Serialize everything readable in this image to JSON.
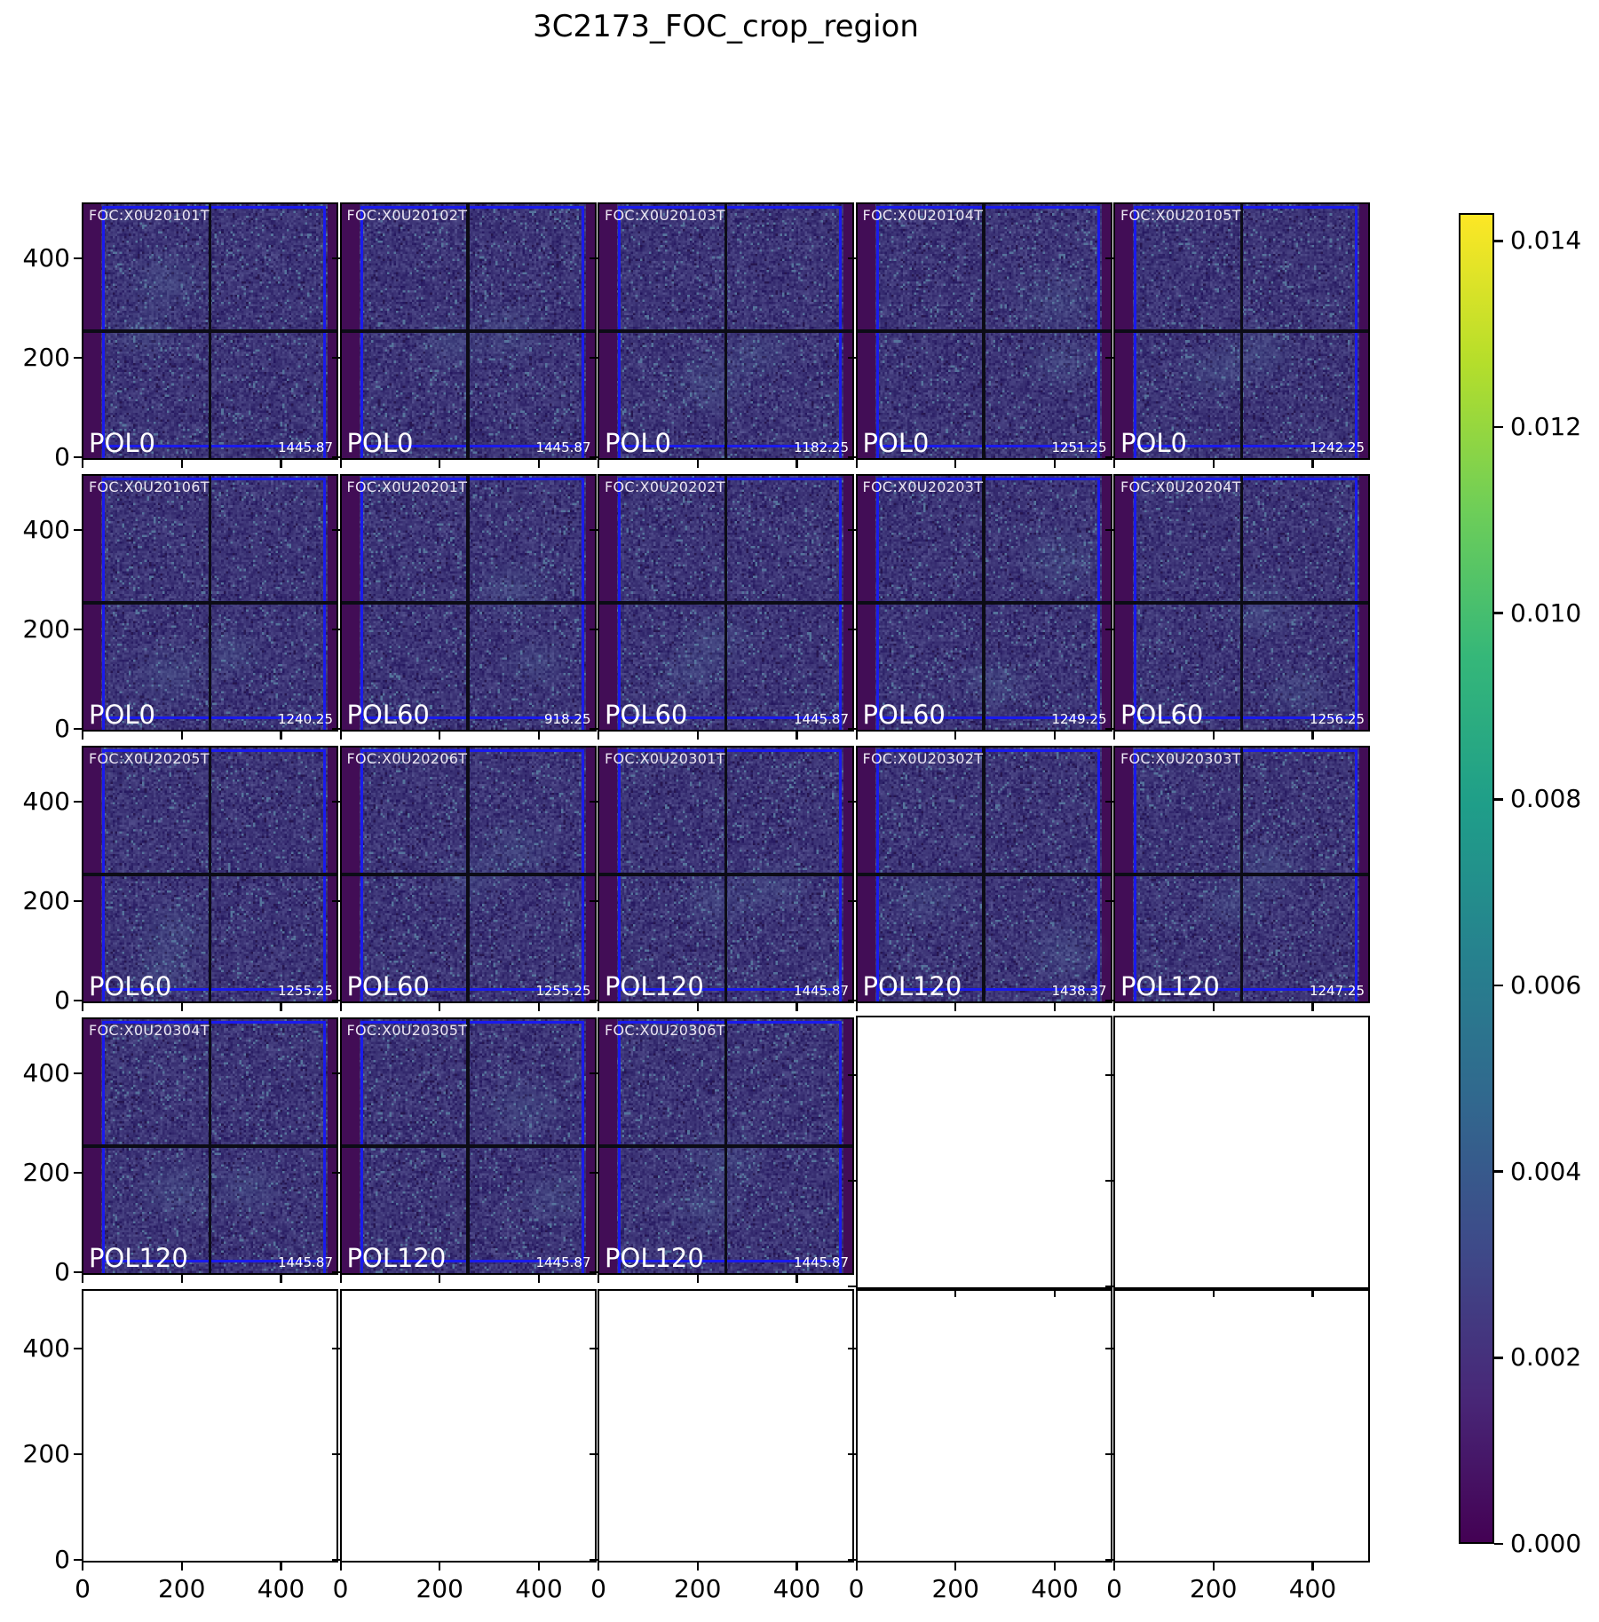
{
  "chart_data": {
    "type": "heatmap",
    "title": "3C2173_FOC_crop_region",
    "colormap": "viridis",
    "grid_rows": 5,
    "grid_cols": 5,
    "axis_data_range": [
      0,
      512
    ],
    "x_tick_labels": [
      "0",
      "200",
      "400"
    ],
    "y_tick_labels": [
      "400",
      "200",
      "0"
    ],
    "tick_values": [
      0,
      200,
      400
    ],
    "panels": [
      {
        "row": 0,
        "col": 0,
        "foc_id": "FOC:X0U20101T",
        "pol": "POL0",
        "value": "1445.87"
      },
      {
        "row": 0,
        "col": 1,
        "foc_id": "FOC:X0U20102T",
        "pol": "POL0",
        "value": "1445.87"
      },
      {
        "row": 0,
        "col": 2,
        "foc_id": "FOC:X0U20103T",
        "pol": "POL0",
        "value": "1182.25"
      },
      {
        "row": 0,
        "col": 3,
        "foc_id": "FOC:X0U20104T",
        "pol": "POL0",
        "value": "1251.25"
      },
      {
        "row": 0,
        "col": 4,
        "foc_id": "FOC:X0U20105T",
        "pol": "POL0",
        "value": "1242.25"
      },
      {
        "row": 1,
        "col": 0,
        "foc_id": "FOC:X0U20106T",
        "pol": "POL0",
        "value": "1240.25"
      },
      {
        "row": 1,
        "col": 1,
        "foc_id": "FOC:X0U20201T",
        "pol": "POL60",
        "value": "918.25"
      },
      {
        "row": 1,
        "col": 2,
        "foc_id": "FOC:X0U20202T",
        "pol": "POL60",
        "value": "1445.87"
      },
      {
        "row": 1,
        "col": 3,
        "foc_id": "FOC:X0U20203T",
        "pol": "POL60",
        "value": "1249.25"
      },
      {
        "row": 1,
        "col": 4,
        "foc_id": "FOC:X0U20204T",
        "pol": "POL60",
        "value": "1256.25"
      },
      {
        "row": 2,
        "col": 0,
        "foc_id": "FOC:X0U20205T",
        "pol": "POL60",
        "value": "1255.25"
      },
      {
        "row": 2,
        "col": 1,
        "foc_id": "FOC:X0U20206T",
        "pol": "POL60",
        "value": "1255.25"
      },
      {
        "row": 2,
        "col": 2,
        "foc_id": "FOC:X0U20301T",
        "pol": "POL120",
        "value": "1445.87"
      },
      {
        "row": 2,
        "col": 3,
        "foc_id": "FOC:X0U20302T",
        "pol": "POL120",
        "value": "1438.37"
      },
      {
        "row": 2,
        "col": 4,
        "foc_id": "FOC:X0U20303T",
        "pol": "POL120",
        "value": "1247.25"
      },
      {
        "row": 3,
        "col": 0,
        "foc_id": "FOC:X0U20304T",
        "pol": "POL120",
        "value": "1445.87"
      },
      {
        "row": 3,
        "col": 1,
        "foc_id": "FOC:X0U20305T",
        "pol": "POL120",
        "value": "1445.87"
      },
      {
        "row": 3,
        "col": 2,
        "foc_id": "FOC:X0U20306T",
        "pol": "POL120",
        "value": "1445.87"
      }
    ],
    "empty_cells": [
      [
        3,
        3
      ],
      [
        3,
        4
      ],
      [
        4,
        0
      ],
      [
        4,
        1
      ],
      [
        4,
        2
      ],
      [
        4,
        3
      ],
      [
        4,
        4
      ]
    ],
    "colorbar": {
      "vmin": 0.0,
      "vmax": 0.0143,
      "tick_labels": [
        "0.014",
        "0.012",
        "0.010",
        "0.008",
        "0.006",
        "0.004",
        "0.002",
        "0.000"
      ],
      "tick_values": [
        0.014,
        0.012,
        0.01,
        0.008,
        0.006,
        0.004,
        0.002,
        0.0
      ]
    }
  },
  "colors": {
    "crop_region_line": "#1a1aee",
    "detector_gap_line": "#0c0c16",
    "detector_edge_strip": "#420d56",
    "image_noise_base": "#3c3476",
    "viridis_stops": [
      "#440154",
      "#482878",
      "#3e4a89",
      "#31688e",
      "#26828e",
      "#1f9e89",
      "#35b779",
      "#6ece58",
      "#b5de2b",
      "#fde725"
    ]
  }
}
